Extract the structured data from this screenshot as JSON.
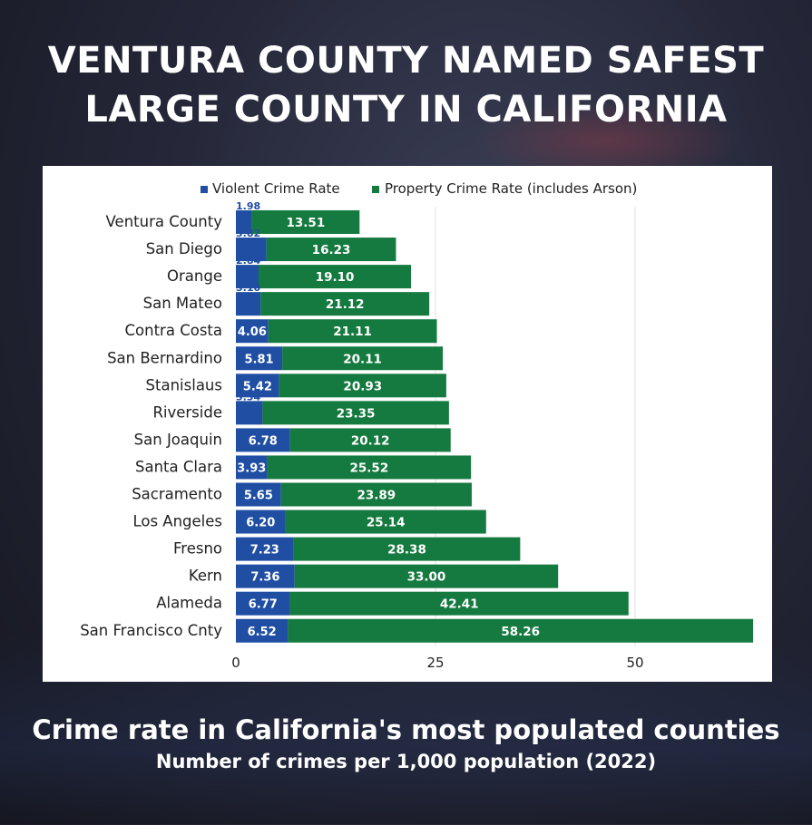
{
  "headline": {
    "line1": "VENTURA COUNTY NAMED SAFEST",
    "line2": "LARGE COUNTY IN CALIFORNIA"
  },
  "caption": {
    "title": "Crime rate in California's most populated counties",
    "subtitle": "Number of crimes per 1,000 population (2022)"
  },
  "colors": {
    "violent": "#1f4ea3",
    "property": "#157a3f",
    "grid": "#e2e2e2",
    "label": "#222222"
  },
  "chart_data": {
    "type": "bar",
    "orientation": "horizontal",
    "stacked": true,
    "categories": [
      "Ventura County",
      "San Diego",
      "Orange",
      "San Mateo",
      "Contra Costa",
      "San Bernardino",
      "Stanislaus",
      "Riverside",
      "San Joaquin",
      "Santa Clara",
      "Sacramento",
      "Los Angeles",
      "Fresno",
      "Kern",
      "Alameda",
      "San Francisco Cnty"
    ],
    "series": [
      {
        "name": "Violent Crime Rate",
        "values": [
          1.98,
          3.82,
          2.84,
          3.1,
          4.06,
          5.81,
          5.42,
          3.34,
          6.78,
          3.93,
          5.65,
          6.2,
          7.23,
          7.36,
          6.77,
          6.52
        ]
      },
      {
        "name": "Property Crime Rate (includes Arson)",
        "values": [
          13.51,
          16.23,
          19.1,
          21.12,
          21.11,
          20.11,
          20.93,
          23.35,
          20.12,
          25.52,
          23.89,
          25.14,
          28.38,
          33.0,
          42.41,
          58.26
        ]
      }
    ],
    "xticks": [
      "0",
      "25",
      "50"
    ],
    "xtick_values": [
      0,
      25,
      50
    ],
    "xlim": [
      0,
      65
    ],
    "grid": true,
    "legend": "top",
    "title": "Crime rate in California's most populated counties",
    "xlabel": "Number of crimes per 1,000 population (2022)",
    "ylabel": ""
  }
}
